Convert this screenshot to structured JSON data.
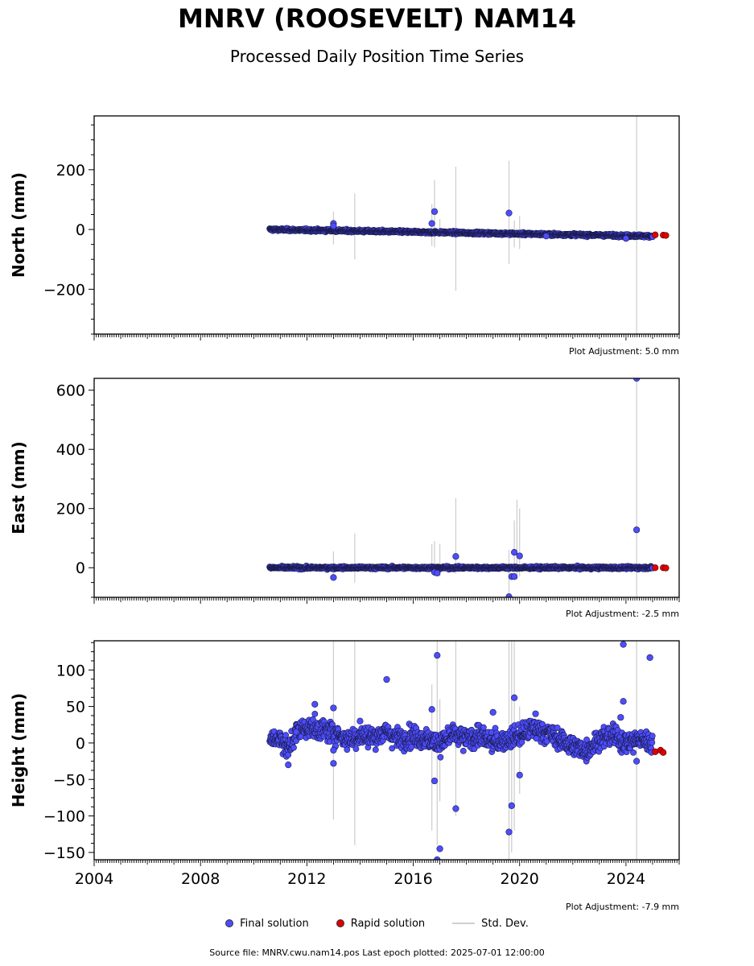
{
  "title": "MNRV (ROOSEVELT) NAM14",
  "subtitle": "Processed Daily Position Time Series",
  "legend": {
    "final": "Final solution",
    "rapid": "Rapid solution",
    "std": "Std. Dev."
  },
  "footer": "Source file: MNRV.cwu.nam14.pos  Last epoch plotted: 2025-07-01 12:00:00",
  "colors": {
    "final": "#4d4dff",
    "rapid": "#e00000",
    "std": "#cfcfcf"
  },
  "chart_data": [
    {
      "type": "scatter",
      "ylabel": "North (mm)",
      "xlim": [
        2004,
        2026
      ],
      "ylim": [
        -350,
        380
      ],
      "yticks": [
        -200,
        0,
        200
      ],
      "x_tick_labels": [],
      "adjustment": "Plot Adjustment: 5.0 mm",
      "trend": {
        "start": [
          2010.6,
          0
        ],
        "end": [
          2025.0,
          -22
        ],
        "noise": 3
      },
      "final_outliers": [
        [
          2013.0,
          20
        ],
        [
          2013.0,
          12
        ],
        [
          2016.8,
          60
        ],
        [
          2016.7,
          20
        ],
        [
          2019.6,
          55
        ],
        [
          2021.0,
          -22
        ],
        [
          2024.0,
          -30
        ]
      ],
      "rapid": [
        [
          2025.1,
          -18
        ],
        [
          2025.4,
          -19
        ],
        [
          2025.5,
          -20
        ]
      ],
      "std_bars": [
        [
          2013.0,
          -50,
          60
        ],
        [
          2013.8,
          -100,
          120
        ],
        [
          2016.7,
          -55,
          85
        ],
        [
          2016.8,
          -60,
          165
        ],
        [
          2017.0,
          -20,
          35
        ],
        [
          2017.6,
          -205,
          210
        ],
        [
          2019.6,
          -115,
          230
        ],
        [
          2019.8,
          -60,
          30
        ],
        [
          2020.0,
          -65,
          45
        ],
        [
          2024.4,
          -350,
          380
        ]
      ]
    },
    {
      "type": "scatter",
      "ylabel": "East (mm)",
      "xlim": [
        2004,
        2026
      ],
      "ylim": [
        -100,
        640
      ],
      "yticks": [
        0,
        200,
        400,
        600
      ],
      "x_tick_labels": [],
      "adjustment": "Plot Adjustment: -2.5 mm",
      "trend": {
        "start": [
          2010.6,
          0
        ],
        "end": [
          2025.0,
          0
        ],
        "noise": 3
      },
      "final_outliers": [
        [
          2013.0,
          -33
        ],
        [
          2016.8,
          -15
        ],
        [
          2016.9,
          -18
        ],
        [
          2017.6,
          38
        ],
        [
          2019.6,
          -98
        ],
        [
          2019.7,
          -30
        ],
        [
          2019.8,
          -30
        ],
        [
          2019.8,
          52
        ],
        [
          2020.0,
          40
        ],
        [
          2024.4,
          128
        ],
        [
          2024.4,
          640
        ]
      ],
      "rapid": [
        [
          2025.1,
          0
        ],
        [
          2025.4,
          0
        ],
        [
          2025.5,
          -1
        ]
      ],
      "std_bars": [
        [
          2013.0,
          -40,
          55
        ],
        [
          2013.8,
          -50,
          115
        ],
        [
          2016.7,
          -20,
          80
        ],
        [
          2016.8,
          -30,
          90
        ],
        [
          2017.0,
          -30,
          80
        ],
        [
          2017.6,
          -20,
          235
        ],
        [
          2019.6,
          -100,
          60
        ],
        [
          2019.8,
          -40,
          160
        ],
        [
          2019.9,
          -40,
          230
        ],
        [
          2020.0,
          -30,
          200
        ],
        [
          2024.4,
          -100,
          640
        ]
      ]
    },
    {
      "type": "scatter",
      "ylabel": "Height (mm)",
      "xlim": [
        2004,
        2026
      ],
      "ylim": [
        -160,
        140
      ],
      "yticks": [
        -150,
        -100,
        -50,
        0,
        50,
        100
      ],
      "x_tick_labels": [
        "2004",
        "2008",
        "2012",
        "2016",
        "2020",
        "2024"
      ],
      "adjustment": "Plot Adjustment: -7.9 mm",
      "trend_points": [
        [
          2010.6,
          5
        ],
        [
          2011.0,
          8
        ],
        [
          2011.3,
          -10
        ],
        [
          2011.6,
          15
        ],
        [
          2012.0,
          22
        ],
        [
          2012.5,
          18
        ],
        [
          2013.0,
          15
        ],
        [
          2013.5,
          5
        ],
        [
          2014.0,
          10
        ],
        [
          2014.5,
          8
        ],
        [
          2015.0,
          15
        ],
        [
          2015.5,
          5
        ],
        [
          2016.0,
          10
        ],
        [
          2016.5,
          5
        ],
        [
          2017.0,
          0
        ],
        [
          2017.5,
          10
        ],
        [
          2018.0,
          5
        ],
        [
          2018.5,
          10
        ],
        [
          2019.0,
          0
        ],
        [
          2019.5,
          5
        ],
        [
          2020.0,
          10
        ],
        [
          2020.5,
          20
        ],
        [
          2021.0,
          15
        ],
        [
          2021.5,
          5
        ],
        [
          2022.0,
          -5
        ],
        [
          2022.5,
          -10
        ],
        [
          2023.0,
          5
        ],
        [
          2023.5,
          10
        ],
        [
          2024.0,
          0
        ],
        [
          2024.5,
          5
        ],
        [
          2025.0,
          0
        ]
      ],
      "noise": 10,
      "final_outliers": [
        [
          2011.3,
          -30
        ],
        [
          2011.6,
          15
        ],
        [
          2012.3,
          53
        ],
        [
          2013.0,
          48
        ],
        [
          2013.0,
          -10
        ],
        [
          2013.0,
          -28
        ],
        [
          2014.0,
          30
        ],
        [
          2015.0,
          87
        ],
        [
          2016.7,
          46
        ],
        [
          2016.8,
          -52
        ],
        [
          2016.9,
          120
        ],
        [
          2017.0,
          -145
        ],
        [
          2016.9,
          -160
        ],
        [
          2017.6,
          -90
        ],
        [
          2019.0,
          42
        ],
        [
          2019.6,
          -122
        ],
        [
          2019.7,
          -86
        ],
        [
          2019.8,
          62
        ],
        [
          2020.0,
          -44
        ],
        [
          2020.6,
          40
        ],
        [
          2023.8,
          35
        ],
        [
          2023.9,
          57
        ],
        [
          2023.9,
          135
        ],
        [
          2024.4,
          -25
        ],
        [
          2024.9,
          117
        ]
      ],
      "rapid": [
        [
          2025.1,
          -12
        ],
        [
          2025.3,
          -10
        ],
        [
          2025.4,
          -13
        ]
      ],
      "std_bars": [
        [
          2013.0,
          -105,
          140
        ],
        [
          2013.8,
          -140,
          140
        ],
        [
          2016.7,
          -120,
          80
        ],
        [
          2016.9,
          -140,
          140
        ],
        [
          2017.0,
          -80,
          60
        ],
        [
          2017.6,
          -100,
          140
        ],
        [
          2019.6,
          -160,
          140
        ],
        [
          2019.7,
          -150,
          140
        ],
        [
          2019.8,
          -120,
          140
        ],
        [
          2020.0,
          -70,
          50
        ],
        [
          2024.4,
          -160,
          140
        ]
      ]
    }
  ]
}
